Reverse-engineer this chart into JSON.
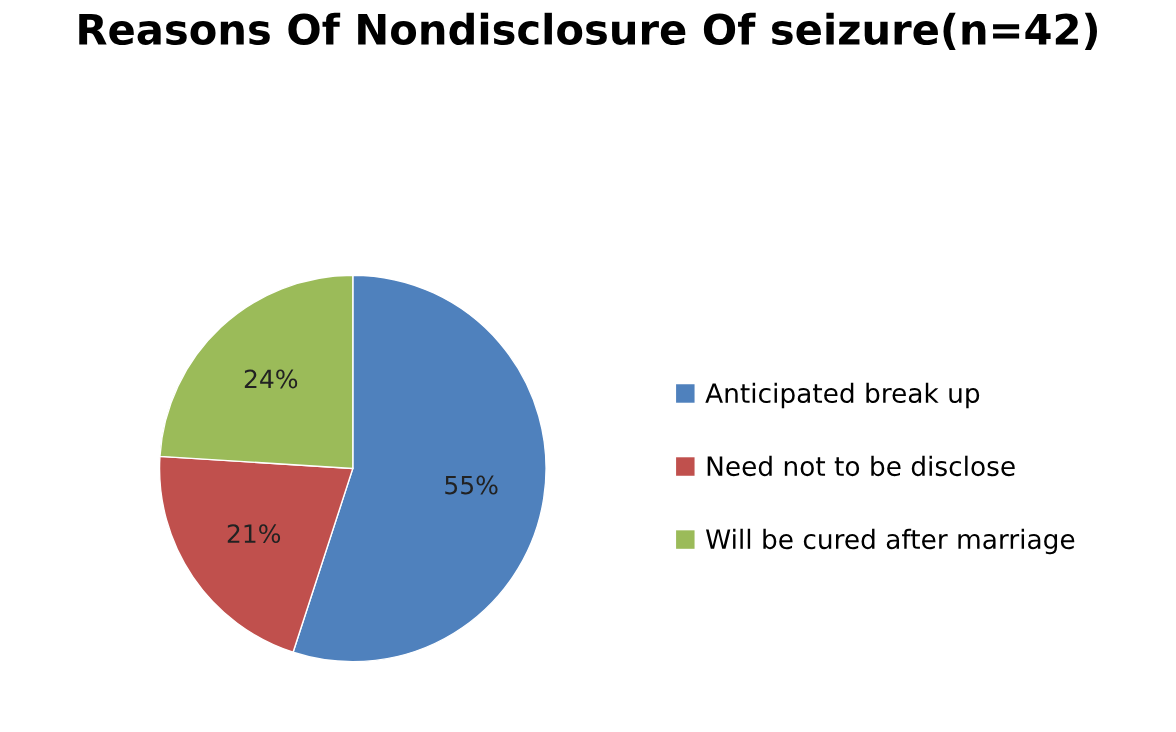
{
  "chart_data": {
    "type": "pie",
    "title": "Reasons Of Nondisclosure Of seizure(n=42)",
    "categories": [
      "Anticipated break up",
      "Need not to be disclose",
      "Will be cured after marriage"
    ],
    "values": [
      55,
      21,
      24
    ],
    "value_labels": [
      "55%",
      "21%",
      "24%"
    ],
    "colors": [
      "#4f81bd",
      "#c0504d",
      "#9bbb59"
    ],
    "legend": "right"
  }
}
